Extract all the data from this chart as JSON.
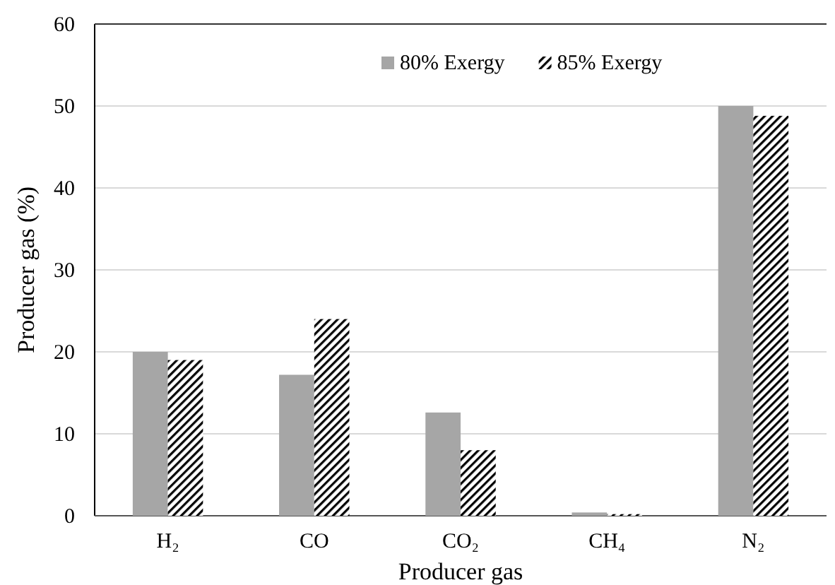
{
  "chart_data": {
    "type": "bar",
    "xlabel": "Producer gas",
    "ylabel": "Producer gas (%)",
    "categories": [
      "H₂",
      "CO",
      "CO₂",
      "CH₄",
      "N₂"
    ],
    "series": [
      {
        "name": "80% Exergy",
        "color": "#a6a6a6",
        "values": [
          20,
          17.2,
          12.6,
          0.4,
          50
        ]
      },
      {
        "name": "85% Exergy",
        "color": "#000000",
        "values": [
          19,
          24,
          8,
          0.2,
          48.8
        ]
      }
    ],
    "ylim": [
      0,
      60
    ],
    "yticks": [
      0,
      10,
      20,
      30,
      40,
      50,
      60
    ],
    "grid": "y",
    "legend": "top"
  }
}
